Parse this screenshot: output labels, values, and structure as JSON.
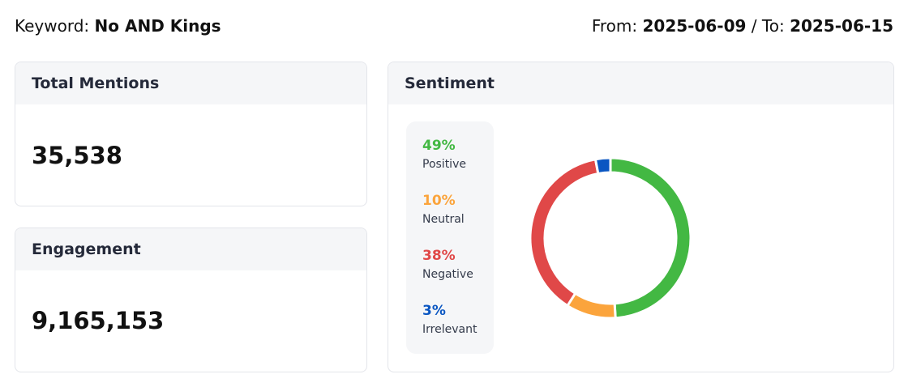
{
  "header": {
    "keyword_label": "Keyword:",
    "keyword": "No AND Kings",
    "from_label": "From:",
    "from": "2025-06-09",
    "separator": "/",
    "to_label": "To:",
    "to": "2025-06-15"
  },
  "total_mentions": {
    "title": "Total Mentions",
    "value": "35,538"
  },
  "engagement": {
    "title": "Engagement",
    "value": "9,165,153"
  },
  "sentiment": {
    "title": "Sentiment"
  },
  "chart_data": {
    "type": "pie",
    "variant": "donut",
    "categories": [
      "Positive",
      "Neutral",
      "Negative",
      "Irrelevant"
    ],
    "values": [
      49,
      10,
      38,
      3
    ],
    "labels": [
      "49%",
      "10%",
      "38%",
      "3%"
    ],
    "colors": [
      "#43b843",
      "#fba43c",
      "#e04848",
      "#0a56c2"
    ],
    "legend": "left"
  }
}
